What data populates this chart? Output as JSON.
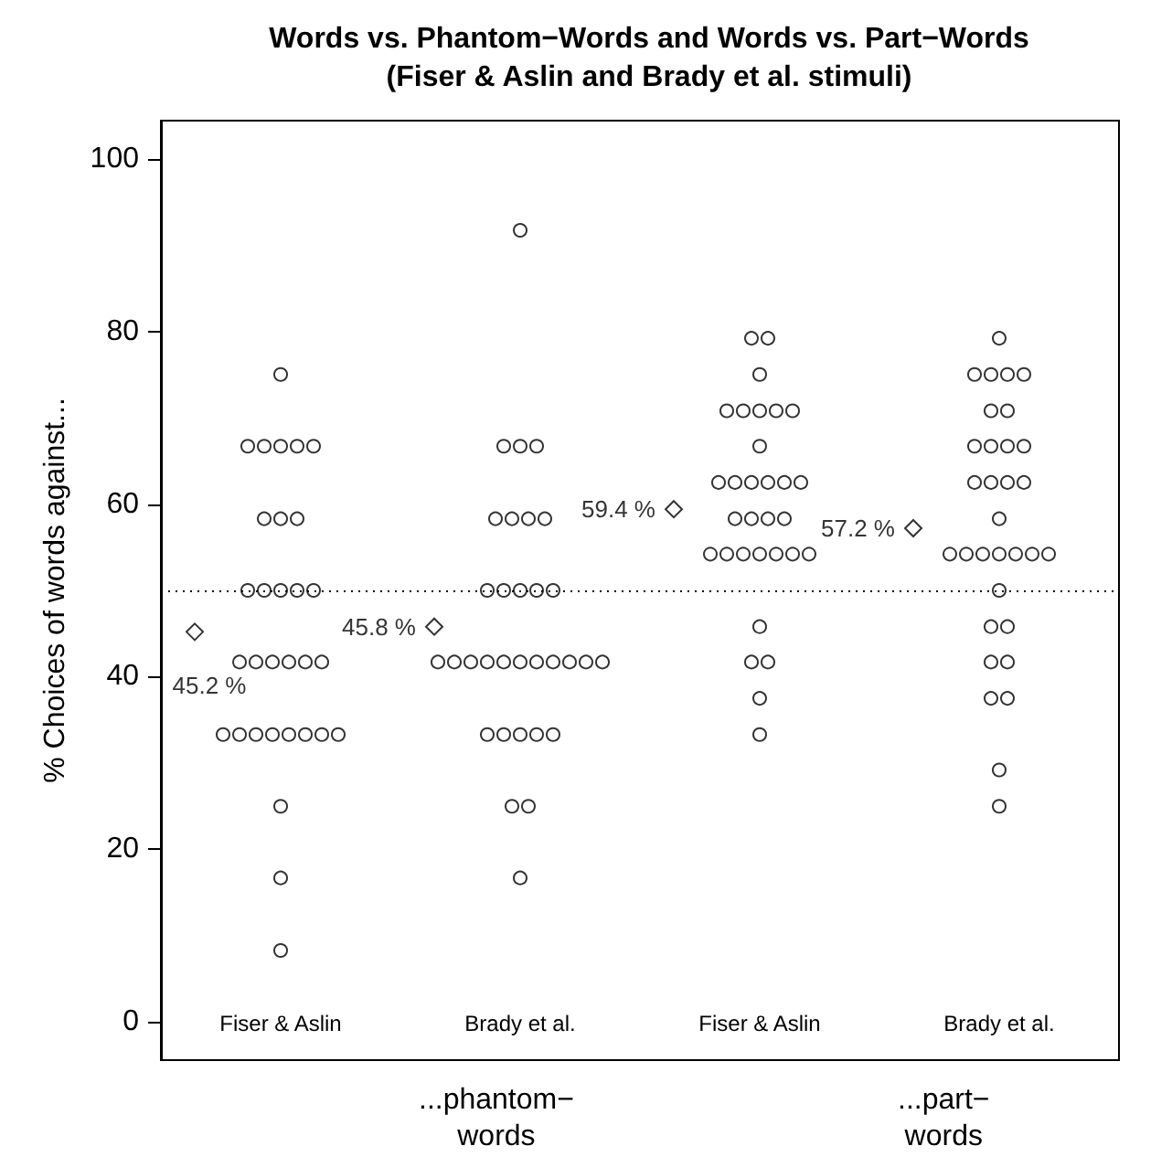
{
  "chart_data": {
    "type": "scatter",
    "title": "Words vs. Phantom−Words and Words vs. Part−Words\n(Fiser & Aslin and Brady et al. stimuli)",
    "ylabel": "% Choices of words against...",
    "categories": [
      "Fiser & Aslin",
      "Brady et al.",
      "Fiser & Aslin",
      "Brady et al."
    ],
    "annotations": [
      "...phantom−\nwords",
      "...part−\nwords"
    ],
    "ylim": [
      -4.4,
      104.4
    ],
    "yticks": [
      0,
      20,
      40,
      60,
      80,
      100
    ],
    "grid": false,
    "ref_lines": [
      {
        "axis": "y",
        "value": 50,
        "label": null,
        "line_style": "dotted",
        "color": "#000000"
      }
    ],
    "series": [
      {
        "color": "#000000",
        "marker": "diamond",
        "values": [
          45.2,
          45.8,
          59.4,
          57.2
        ],
        "value_labels": [
          "45.2 %",
          "45.8 %",
          "59.4 %",
          "57.2 %"
        ]
      },
      {
        "color": "#000000",
        "marker": "circle",
        "values": [
          75,
          91.7,
          79.2,
          79.2
        ]
      },
      {
        "color": "#000000",
        "marker": "circle",
        "values": [
          66.7,
          66.7,
          79.2,
          75
        ]
      },
      {
        "color": "#000000",
        "marker": "circle",
        "values": [
          66.7,
          66.7,
          75,
          75
        ]
      },
      {
        "color": "#000000",
        "marker": "circle",
        "values": [
          66.7,
          66.7,
          70.8,
          75
        ]
      },
      {
        "color": "#000000",
        "marker": "circle",
        "values": [
          66.7,
          58.3,
          70.8,
          75
        ]
      },
      {
        "color": "#000000",
        "marker": "circle",
        "values": [
          66.7,
          58.3,
          70.8,
          70.8
        ]
      },
      {
        "color": "#000000",
        "marker": "circle",
        "values": [
          58.3,
          58.3,
          70.8,
          70.8
        ]
      },
      {
        "color": "#000000",
        "marker": "circle",
        "values": [
          58.3,
          58.3,
          70.8,
          66.7
        ]
      },
      {
        "color": "#000000",
        "marker": "circle",
        "values": [
          58.3,
          50,
          66.7,
          66.7
        ]
      },
      {
        "color": "#000000",
        "marker": "circle",
        "values": [
          50,
          50,
          62.5,
          66.7
        ]
      },
      {
        "color": "#000000",
        "marker": "circle",
        "values": [
          50,
          50,
          62.5,
          66.7
        ]
      },
      {
        "color": "#000000",
        "marker": "circle",
        "values": [
          50,
          50,
          62.5,
          62.5
        ]
      },
      {
        "color": "#000000",
        "marker": "circle",
        "values": [
          50,
          50,
          62.5,
          62.5
        ]
      },
      {
        "color": "#000000",
        "marker": "circle",
        "values": [
          50,
          41.7,
          62.5,
          62.5
        ]
      },
      {
        "color": "#000000",
        "marker": "circle",
        "values": [
          41.7,
          41.7,
          62.5,
          62.5
        ]
      },
      {
        "color": "#000000",
        "marker": "circle",
        "values": [
          41.7,
          41.7,
          58.3,
          58.3
        ]
      },
      {
        "color": "#000000",
        "marker": "circle",
        "values": [
          41.7,
          41.7,
          58.3,
          54.2
        ]
      },
      {
        "color": "#000000",
        "marker": "circle",
        "values": [
          41.7,
          41.7,
          58.3,
          54.2
        ]
      },
      {
        "color": "#000000",
        "marker": "circle",
        "values": [
          41.7,
          41.7,
          58.3,
          54.2
        ]
      },
      {
        "color": "#000000",
        "marker": "circle",
        "values": [
          41.7,
          41.7,
          54.2,
          54.2
        ]
      },
      {
        "color": "#000000",
        "marker": "circle",
        "values": [
          33.3,
          41.7,
          54.2,
          54.2
        ]
      },
      {
        "color": "#000000",
        "marker": "circle",
        "values": [
          33.3,
          41.7,
          54.2,
          54.2
        ]
      },
      {
        "color": "#000000",
        "marker": "circle",
        "values": [
          33.3,
          41.7,
          54.2,
          54.2
        ]
      },
      {
        "color": "#000000",
        "marker": "circle",
        "values": [
          33.3,
          41.7,
          54.2,
          50
        ]
      },
      {
        "color": "#000000",
        "marker": "circle",
        "values": [
          33.3,
          33.3,
          54.2,
          45.8
        ]
      },
      {
        "color": "#000000",
        "marker": "circle",
        "values": [
          33.3,
          33.3,
          54.2,
          45.8
        ]
      },
      {
        "color": "#000000",
        "marker": "circle",
        "values": [
          33.3,
          33.3,
          45.8,
          41.7
        ]
      },
      {
        "color": "#000000",
        "marker": "circle",
        "values": [
          33.3,
          33.3,
          41.7,
          41.7
        ]
      },
      {
        "color": "#000000",
        "marker": "circle",
        "values": [
          25,
          33.3,
          41.7,
          37.5
        ]
      },
      {
        "color": "#000000",
        "marker": "circle",
        "values": [
          16.7,
          25,
          37.5,
          37.5
        ]
      },
      {
        "color": "#000000",
        "marker": "circle",
        "values": [
          8.3,
          25,
          33.3,
          29.2
        ]
      },
      {
        "color": "#000000",
        "marker": "circle",
        "values": [
          null,
          16.7,
          null,
          25
        ]
      }
    ]
  }
}
